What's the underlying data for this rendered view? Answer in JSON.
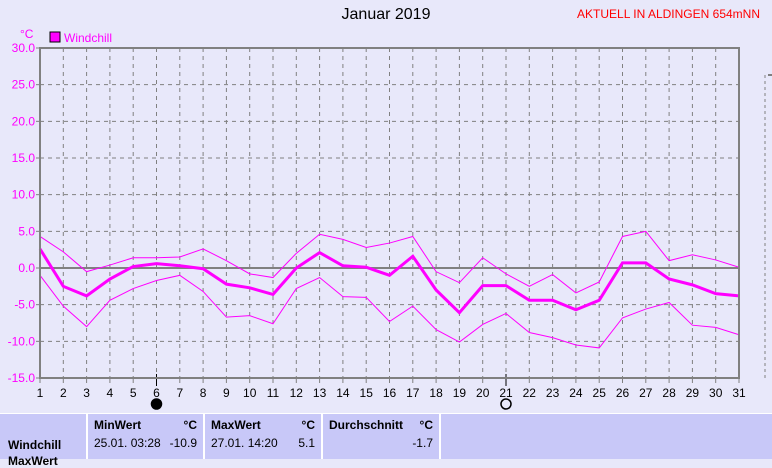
{
  "title": "Januar 2019",
  "station": "AKTUELL IN ALDINGEN 654mNN",
  "chart_data": {
    "type": "line",
    "title": "Januar 2019",
    "ylabel": "°C",
    "ylim": [
      -15,
      30
    ],
    "yticks": [
      "30.0",
      "25.0",
      "20.0",
      "15.0",
      "10.0",
      "5.0",
      "0.0",
      "-5.0",
      "-10.0",
      "-15.0"
    ],
    "x": [
      1,
      2,
      3,
      4,
      5,
      6,
      7,
      8,
      9,
      10,
      11,
      12,
      13,
      14,
      15,
      16,
      17,
      18,
      19,
      20,
      21,
      22,
      23,
      24,
      25,
      26,
      27,
      28,
      29,
      30,
      31
    ],
    "grid": true,
    "legend": "top-left",
    "color": "#ff00ff",
    "series": [
      {
        "name": "Windchill",
        "values": [
          2.6,
          -2.5,
          -3.8,
          -1.5,
          0.2,
          0.6,
          0.3,
          -0.1,
          -2.2,
          -2.7,
          -3.6,
          0,
          2.1,
          0.3,
          0.1,
          -1.0,
          1.6,
          -3.0,
          -6.1,
          -2.4,
          -2.4,
          -4.4,
          -4.4,
          -5.7,
          -4.4,
          0.7,
          0.7,
          -1.5,
          -2.3,
          -3.5,
          -3.8
        ]
      },
      {
        "values": [
          4.3,
          2.2,
          -0.5,
          0.4,
          1.4,
          1.4,
          1.5,
          2.6,
          1.0,
          -0.8,
          -1.3,
          2.0,
          4.6,
          3.9,
          2.8,
          3.4,
          4.3,
          -0.5,
          -2.0,
          1.4,
          -0.8,
          -2.5,
          -0.9,
          -3.4,
          -1.9,
          4.3,
          5.0,
          1.0,
          1.8,
          1.1,
          0.1
        ]
      },
      {
        "values": [
          -1.0,
          -5.2,
          -8.0,
          -4.4,
          -2.8,
          -1.7,
          -1.0,
          -3.2,
          -6.7,
          -6.5,
          -7.6,
          -2.8,
          -1.3,
          -3.9,
          -4.0,
          -7.3,
          -5.2,
          -8.4,
          -10.1,
          -7.7,
          -6.2,
          -8.8,
          -9.5,
          -10.5,
          -10.9,
          -6.8,
          -5.6,
          -4.7,
          -7.8,
          -8.1,
          -9.1
        ]
      }
    ],
    "moon_phases": [
      {
        "day": 6,
        "phase": "new-moon"
      },
      {
        "day": 21,
        "phase": "full-moon"
      }
    ]
  },
  "table": {
    "row_labels": [
      "Windchill",
      "MaxWert"
    ],
    "min": {
      "header": "MinWert",
      "unit": "°C",
      "date": "25.01.  03:28",
      "value": "-10.9"
    },
    "max": {
      "header": "MaxWert",
      "unit": "°C",
      "date": "27.01.  14:20",
      "value": "5.1"
    },
    "avg": {
      "header": "Durchschnitt",
      "unit": "°C",
      "value": "-1.7"
    }
  }
}
